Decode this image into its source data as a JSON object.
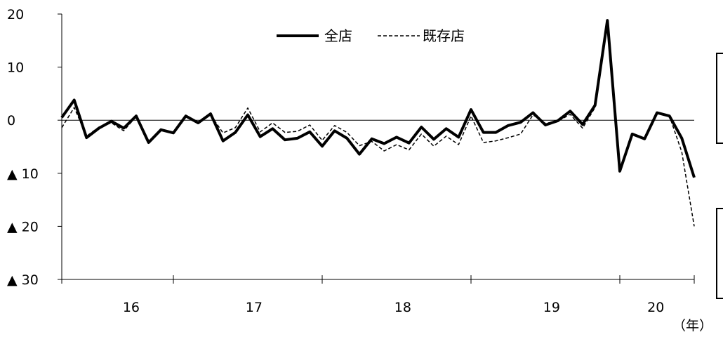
{
  "chart_data": {
    "type": "line",
    "x_unit_label": "（年）",
    "x_tick_labels": [
      "16",
      "17",
      "18",
      "19",
      "20"
    ],
    "y_tick_labels": [
      "20",
      "10",
      "0",
      "▲ 10",
      "▲ 20",
      "▲ 30"
    ],
    "y_ticks": [
      20,
      10,
      0,
      -10,
      -20,
      -30
    ],
    "ylim": [
      -30,
      20
    ],
    "zero_line": true,
    "legend_position": "top-center",
    "series": [
      {
        "name": "全店",
        "style": "solid-thick",
        "color": "#000000",
        "values": [
          0.5,
          3.8,
          -3.3,
          -1.5,
          -0.2,
          -1.5,
          0.8,
          -4.2,
          -1.8,
          -2.4,
          0.8,
          -0.5,
          1.2,
          -3.9,
          -2.3,
          1.0,
          -3.1,
          -1.6,
          -3.7,
          -3.4,
          -2.2,
          -4.9,
          -2.0,
          -3.4,
          -6.4,
          -3.5,
          -4.4,
          -3.2,
          -4.3,
          -1.3,
          -3.6,
          -1.6,
          -3.2,
          2.0,
          -2.3,
          -2.3,
          -1.0,
          -0.4,
          1.4,
          -0.9,
          -0.1,
          1.7,
          -0.8,
          2.8,
          18.8,
          -9.6,
          -2.6,
          -3.5,
          1.4,
          0.8,
          -3.4,
          -10.8
        ]
      },
      {
        "name": "既存店",
        "style": "dashed-thin",
        "color": "#000000",
        "values": [
          -1.4,
          2.4,
          -3.0,
          -1.3,
          -0.5,
          -2.0,
          0.7,
          -4.0,
          -1.8,
          -2.3,
          0.7,
          -0.6,
          1.0,
          -2.4,
          -1.4,
          2.3,
          -2.2,
          -0.5,
          -2.3,
          -2.1,
          -0.9,
          -3.8,
          -1.0,
          -2.3,
          -4.8,
          -4.0,
          -5.8,
          -4.6,
          -5.6,
          -2.6,
          -4.9,
          -3.0,
          -4.6,
          0.8,
          -4.2,
          -3.9,
          -3.3,
          -2.6,
          1.0,
          -0.6,
          -0.2,
          1.1,
          -1.5,
          2.4,
          18.8,
          -9.6,
          -2.6,
          -3.5,
          1.4,
          0.8,
          -6.0,
          -20.0
        ]
      }
    ]
  }
}
